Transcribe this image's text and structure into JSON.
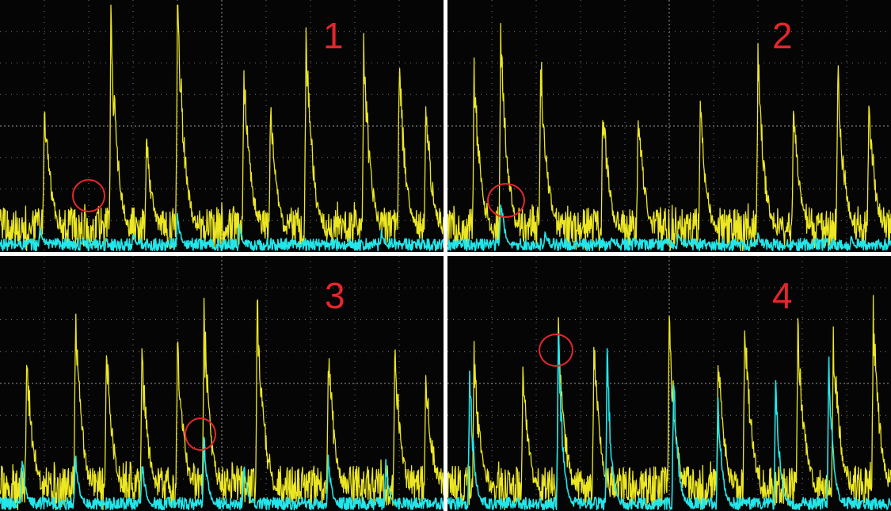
{
  "colors": {
    "background": "#050505",
    "grid": "#7a7a7a",
    "grid_center": "#9a9a9a",
    "series_yellow": "#ece722",
    "series_cyan": "#23e6ea",
    "annotation": "#e5262b",
    "divider": "#ffffff"
  },
  "chart_data": [
    {
      "type": "line",
      "panel_label": "1",
      "grid": true,
      "divisions": {
        "x": 10,
        "y": 8
      },
      "series": [
        {
          "color": "yellow",
          "peaks": [
            0.1,
            0.25,
            0.33,
            0.4,
            0.55,
            0.61,
            0.69,
            0.82,
            0.9,
            0.96
          ],
          "peak_levels": [
            0.6,
            0.88,
            0.47,
            1.0,
            0.73,
            0.58,
            0.85,
            0.77,
            0.74,
            0.58
          ]
        },
        {
          "color": "cyan",
          "peaks": [
            0.09,
            0.3,
            0.4,
            0.54,
            0.86
          ],
          "peak_levels": [
            0.1,
            0.08,
            0.14,
            0.1,
            0.08
          ]
        }
      ],
      "annotation": {
        "shape": "circle",
        "x": 0.2,
        "y": 0.23
      }
    },
    {
      "type": "line",
      "panel_label": "2",
      "grid": true,
      "divisions": {
        "x": 10,
        "y": 8
      },
      "series": [
        {
          "color": "yellow",
          "peaks": [
            0.06,
            0.12,
            0.21,
            0.35,
            0.43,
            0.57,
            0.7,
            0.78,
            0.88,
            0.95
          ],
          "peak_levels": [
            0.72,
            0.83,
            0.76,
            0.6,
            0.58,
            0.57,
            0.75,
            0.6,
            0.7,
            0.57
          ]
        },
        {
          "color": "cyan",
          "peaks": [
            0.12,
            0.22,
            0.37,
            0.52,
            0.7,
            0.91
          ],
          "peak_levels": [
            0.22,
            0.08,
            0.06,
            0.08,
            0.07,
            0.06
          ]
        }
      ],
      "annotation": {
        "shape": "circle",
        "x": 0.13,
        "y": 0.21
      }
    },
    {
      "type": "line",
      "panel_label": "3",
      "grid": true,
      "divisions": {
        "x": 10,
        "y": 8
      },
      "series": [
        {
          "color": "yellow",
          "peaks": [
            0.06,
            0.17,
            0.24,
            0.32,
            0.4,
            0.46,
            0.58,
            0.74,
            0.89,
            0.96
          ],
          "peak_levels": [
            0.58,
            0.75,
            0.62,
            0.6,
            0.66,
            0.75,
            0.82,
            0.65,
            0.6,
            0.55
          ]
        },
        {
          "color": "cyan",
          "peaks": [
            0.05,
            0.17,
            0.32,
            0.46,
            0.55,
            0.74,
            0.87
          ],
          "peak_levels": [
            0.2,
            0.22,
            0.2,
            0.28,
            0.18,
            0.2,
            0.18
          ]
        }
      ],
      "annotation": {
        "shape": "circle",
        "x": 0.45,
        "y": 0.29
      }
    },
    {
      "type": "line",
      "panel_label": "4",
      "grid": true,
      "divisions": {
        "x": 10,
        "y": 8
      },
      "series": [
        {
          "color": "yellow",
          "peaks": [
            0.06,
            0.17,
            0.25,
            0.33,
            0.5,
            0.61,
            0.67,
            0.79,
            0.87,
            0.96
          ],
          "peak_levels": [
            0.6,
            0.55,
            0.72,
            0.65,
            0.73,
            0.6,
            0.74,
            0.72,
            0.7,
            0.75
          ]
        },
        {
          "color": "cyan",
          "peaks": [
            0.05,
            0.25,
            0.36,
            0.51,
            0.61,
            0.74,
            0.86
          ],
          "peak_levels": [
            0.55,
            0.7,
            0.6,
            0.55,
            0.42,
            0.52,
            0.6
          ]
        }
      ],
      "annotation": {
        "shape": "circle",
        "x": 0.25,
        "y": 0.63
      }
    }
  ]
}
